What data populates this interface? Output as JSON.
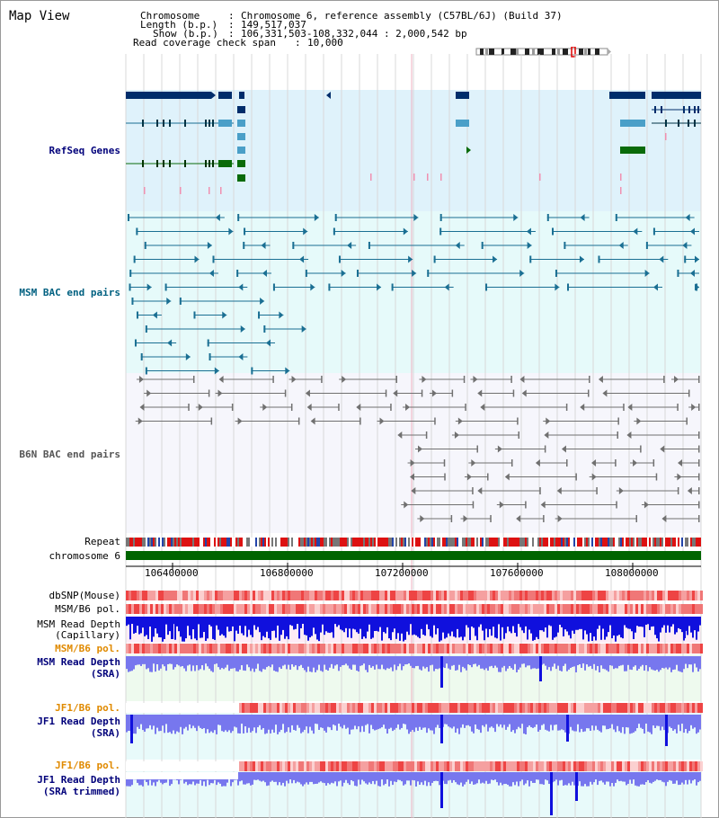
{
  "page": {
    "title": "Map View"
  },
  "header": {
    "chromosome_key": "Chromosome",
    "chromosome_value": "Chromosome 6, reference assembly (C57BL/6J) (Build 37)",
    "length_key": "Length (b.p.)",
    "length_value": "149,517,037",
    "show_key": "Show (b.p.)",
    "show_value": "106,331,503-108,332,044 : 2,000,542 bp",
    "coverage_key": "Read coverage check span",
    "coverage_value": "10,000",
    "separator": ":"
  },
  "tracks": {
    "refseq": "RefSeq Genes",
    "msm_bac": "MSM BAC end pairs",
    "b6n_bac": "B6N BAC end pairs",
    "repeat": "Repeat",
    "chromosome": "chromosome 6",
    "dbsnp": "dbSNP(Mouse)",
    "msm_b6_pol_1": "MSM/B6 pol.",
    "msm_read_depth_cap_1": "MSM Read Depth",
    "msm_read_depth_cap_2": "(Capillary)",
    "msm_b6_pol_2": "MSM/B6 pol.",
    "msm_read_depth_sra_1": "MSM Read Depth",
    "msm_read_depth_sra_2": "(SRA)",
    "jf1_b6_pol_1": "JF1/B6 pol.",
    "jf1_read_depth_sra_1": "JF1 Read Depth",
    "jf1_read_depth_sra_2": "(SRA)",
    "jf1_b6_pol_2": "JF1/B6 pol.",
    "jf1_read_depth_trim_1": "JF1 Read Depth",
    "jf1_read_depth_trim_2": "(SRA trimmed)"
  },
  "axis": {
    "ticks": [
      "106400000",
      "106800000",
      "107200000",
      "107600000",
      "108000000"
    ]
  },
  "colors": {
    "refseq_bg": "#dff2fb",
    "msm_bg": "#e6fafa",
    "b6n_bg": "#f6f6fc",
    "refseq_dark": "#002d6b",
    "refseq_mid": "#4a9fc8",
    "refseq_green": "#0a6b0a",
    "msm_feature": "#1a6f93",
    "b6n_feature": "#707070",
    "label_blue": "#00007a",
    "label_teal": "#006080",
    "label_gray": "#555555",
    "label_orange": "#e08a00",
    "depth_blue": "#1010dd",
    "depth_light": "#7777ee",
    "chromosome_green": "#006400"
  }
}
